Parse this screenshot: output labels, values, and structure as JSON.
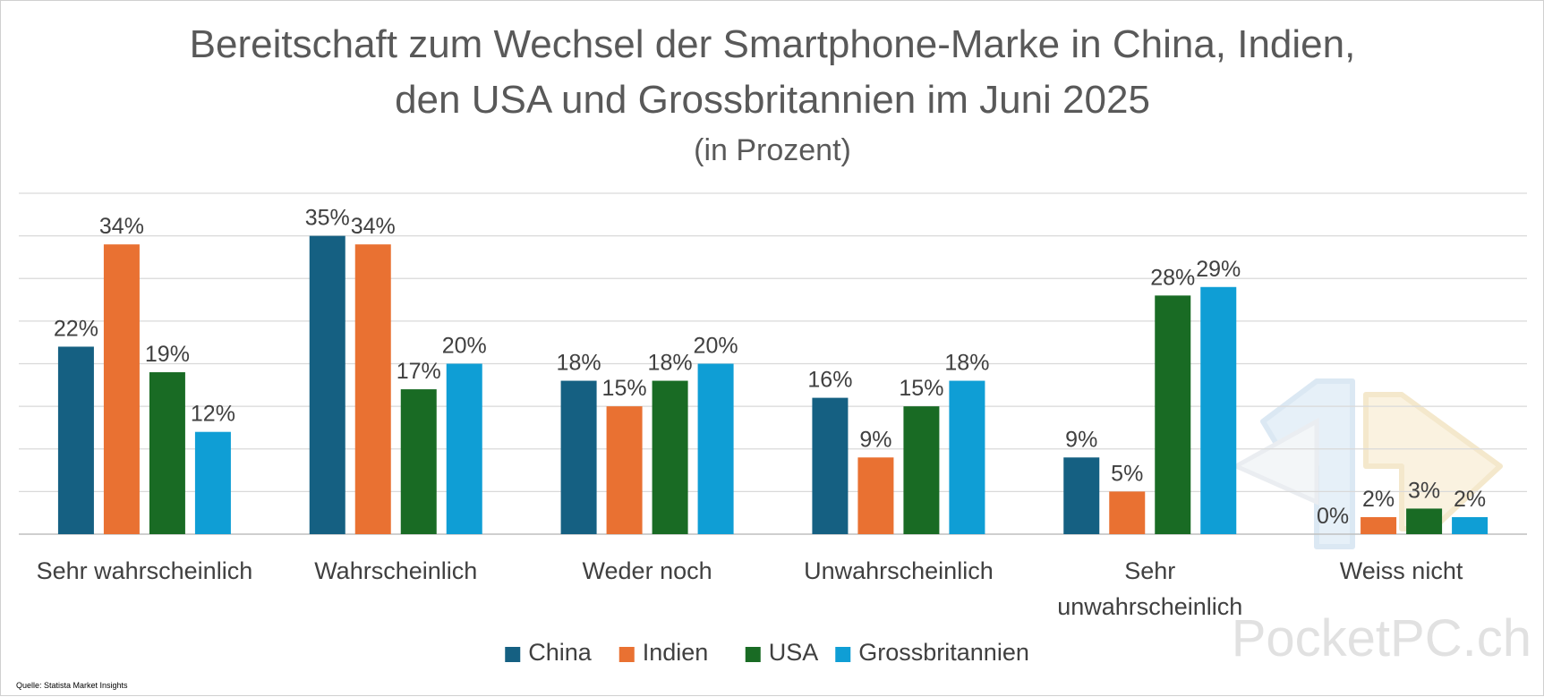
{
  "chart_data": {
    "type": "bar",
    "title_line1": "Bereitschaft zum Wechsel der Smartphone-Marke in China, Indien,",
    "title_line2": "den USA und Grossbritannien im Juni 2025",
    "subtitle": "(in Prozent)",
    "categories": [
      [
        "Sehr wahrscheinlich"
      ],
      [
        "Wahrscheinlich"
      ],
      [
        "Weder noch"
      ],
      [
        "Unwahrscheinlich"
      ],
      [
        "Sehr",
        "unwahrscheinlich"
      ],
      [
        "Weiss nicht"
      ]
    ],
    "series": [
      {
        "name": "China",
        "color": "#156082",
        "values": [
          22,
          35,
          18,
          16,
          9,
          0
        ]
      },
      {
        "name": "Indien",
        "color": "#E97132",
        "values": [
          34,
          34,
          15,
          9,
          5,
          2
        ]
      },
      {
        "name": "USA",
        "color": "#196B24",
        "values": [
          19,
          17,
          18,
          15,
          28,
          3
        ]
      },
      {
        "name": "Grossbritannien",
        "color": "#0F9ED5",
        "values": [
          12,
          20,
          20,
          18,
          29,
          2
        ]
      }
    ],
    "value_suffix": "%",
    "ylim": [
      0,
      40
    ],
    "grid": true,
    "legend_position": "bottom"
  },
  "source": "Quelle: Statista Market Insights",
  "watermark": "PocketPC.ch"
}
